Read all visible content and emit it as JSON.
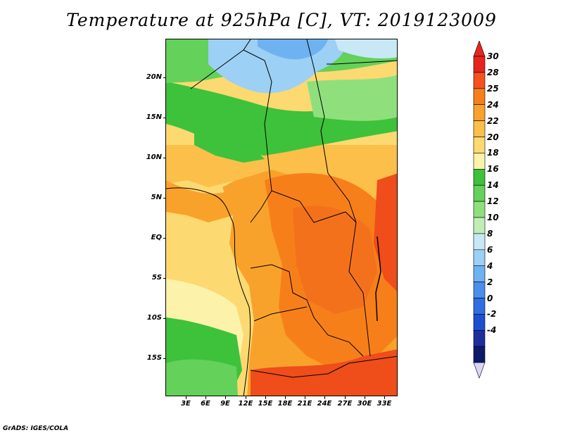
{
  "title": "Temperature at 925hPa [C], VT: 2019123009",
  "credit": "GrADS: IGES/COLA",
  "lat_labels": [
    "20N",
    "15N",
    "10N",
    "5N",
    "EQ",
    "5S",
    "10S",
    "15S"
  ],
  "lon_labels": [
    "3E",
    "6E",
    "9E",
    "12E",
    "15E",
    "18E",
    "21E",
    "24E",
    "27E",
    "30E",
    "33E"
  ],
  "colorbar": {
    "levels": [
      "30",
      "28",
      "25",
      "24",
      "22",
      "20",
      "18",
      "16",
      "14",
      "12",
      "10",
      "8",
      "6",
      "4",
      "2",
      "0",
      "-2",
      "-4"
    ],
    "colors": [
      "#e8241e",
      "#f4511e",
      "#f77f19",
      "#f9a22b",
      "#fbbf4a",
      "#fcd971",
      "#fcf2a9",
      "#3ec13b",
      "#63d15a",
      "#8fe07c",
      "#c0eeb6",
      "#c8e8f6",
      "#9cd0f5",
      "#6fb2f1",
      "#4a8fe9",
      "#2f6ee0",
      "#1b4fcf",
      "#1c2f9e",
      "#0d1a6a"
    ],
    "top_color": "#e8241e",
    "bottom_color": "#d9d7f2"
  },
  "map_colors": {
    "ocean_south": "#f7e27c",
    "hot": "#f4711c",
    "very_hot": "#ef4d1a",
    "warm": "#f9a22b",
    "mild": "#fbbf4a",
    "green": "#3ec13b",
    "light_green": "#8fe07c",
    "blue": "#9cd0f5"
  }
}
